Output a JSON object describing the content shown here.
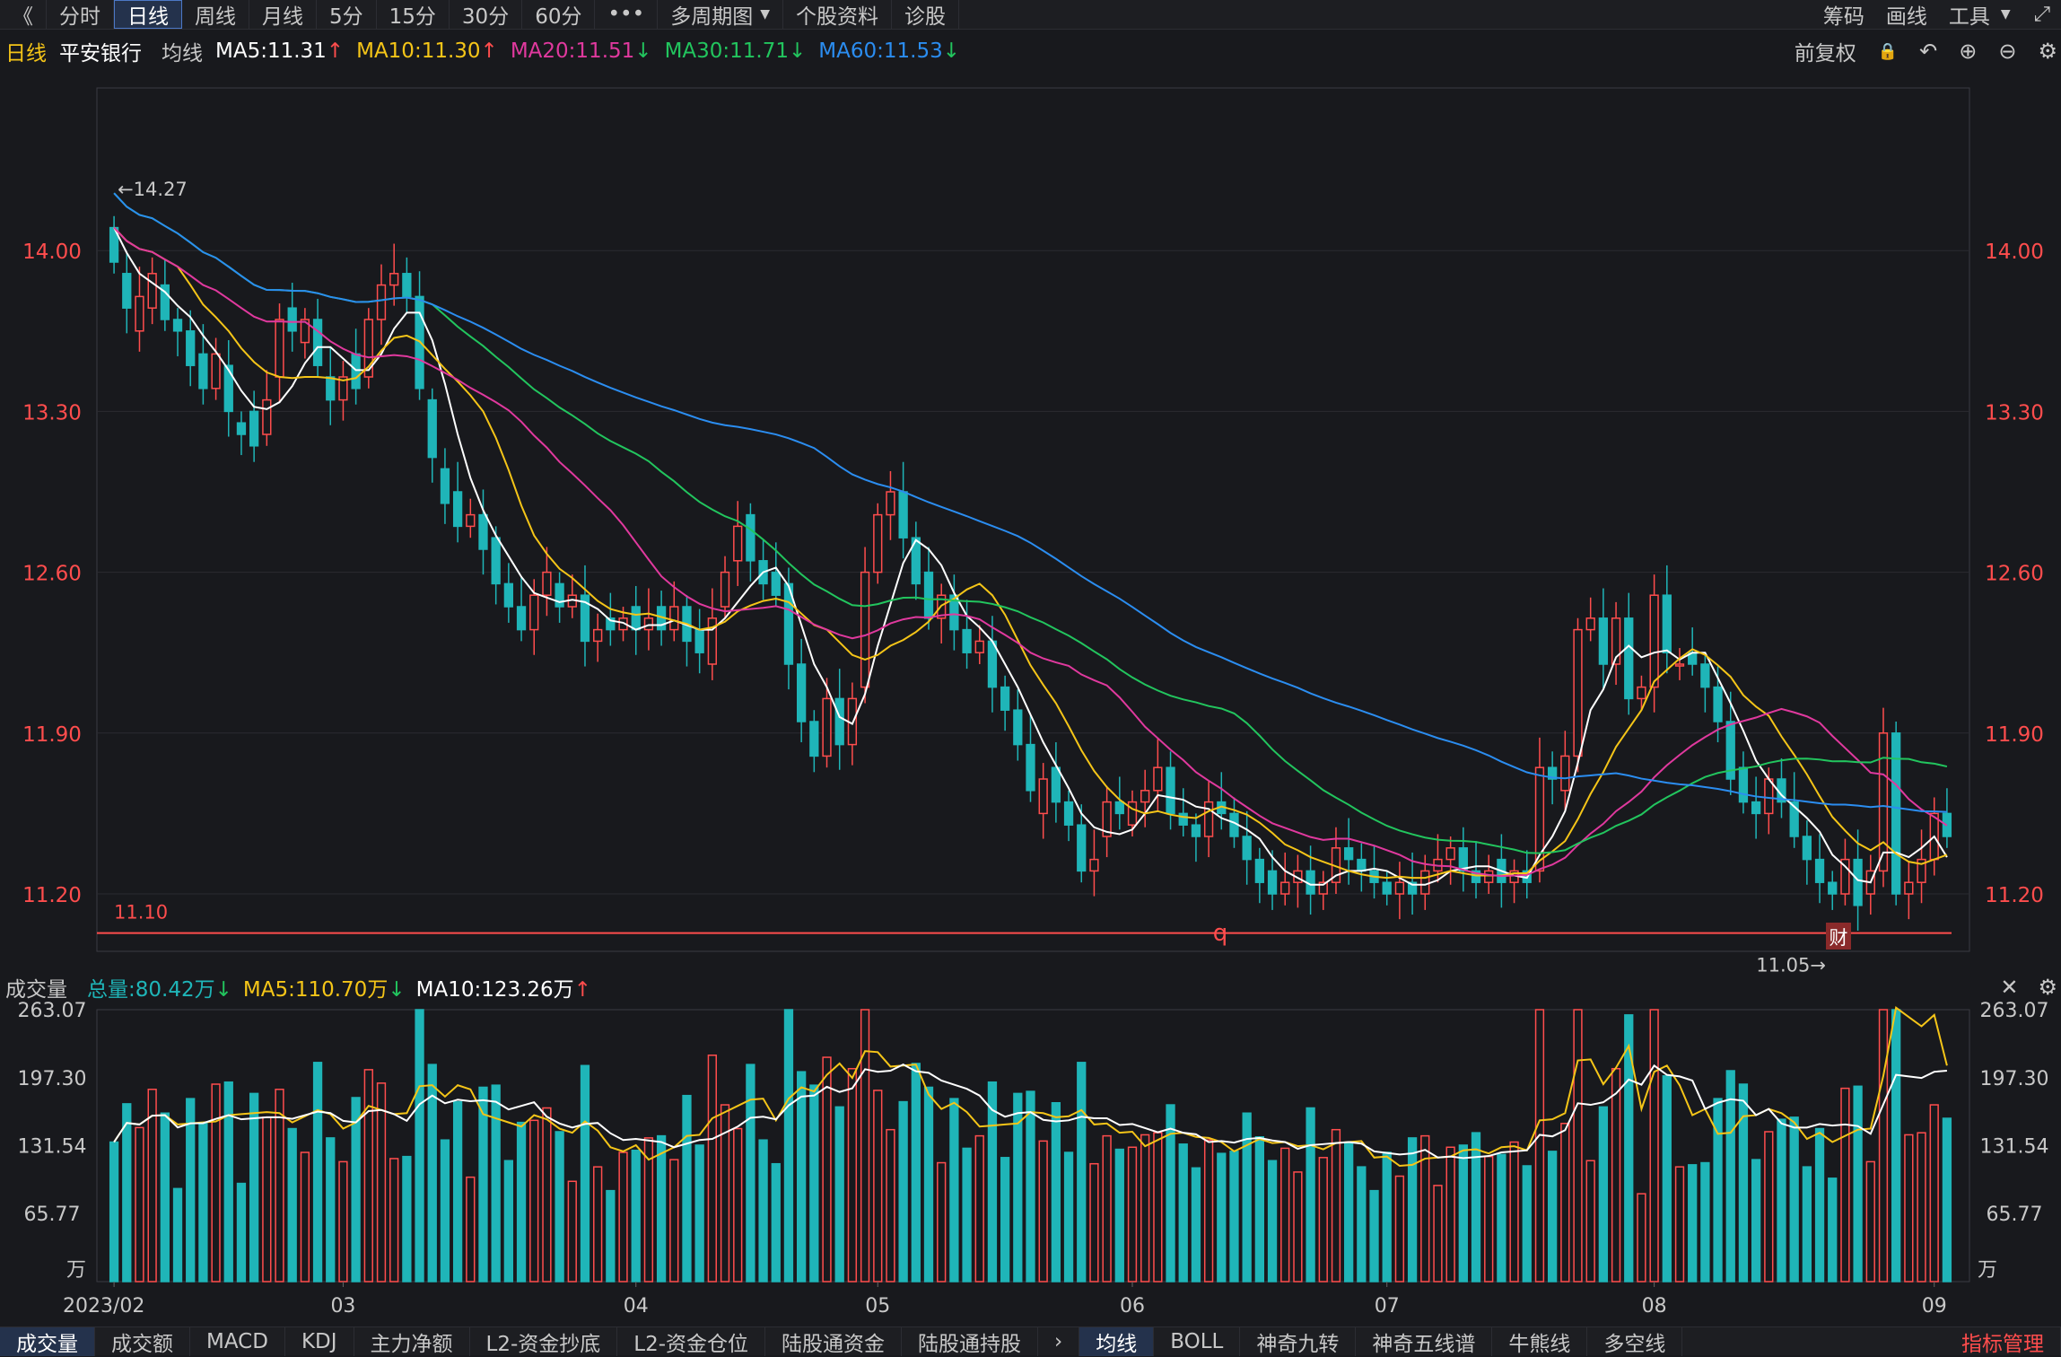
{
  "toolbar": {
    "back": "《",
    "tabs": [
      "分时",
      "日线",
      "周线",
      "月线",
      "5分",
      "15分",
      "30分",
      "60分"
    ],
    "active": 1,
    "more": "•••",
    "multi": "多周期图",
    "multi_arrow": "▼",
    "info": "个股资料",
    "diag": "诊股",
    "right": [
      "筹码",
      "画线",
      "工具"
    ],
    "tools_arrow": "▼",
    "expand_icon": "⤢"
  },
  "info": {
    "period": "日线",
    "name": "平安银行",
    "ma_label": "均线",
    "ma5": "MA5:11.31",
    "ma5_dir": "↑",
    "ma10": "MA10:11.30",
    "ma10_dir": "↑",
    "ma20": "MA20:11.51",
    "ma20_dir": "↓",
    "ma30": "MA30:11.71",
    "ma30_dir": "↓",
    "ma60": "MA60:11.53",
    "ma60_dir": "↓",
    "adj": "前复权",
    "icons": [
      "🔒",
      "↶",
      "⊕",
      "⊖",
      "⚙"
    ]
  },
  "colors": {
    "up": "#ff4d4d",
    "down": "#1fb5b8",
    "ma5": "#ffffff",
    "ma10": "#f5c518",
    "ma20": "#e0399e",
    "ma30": "#22c55e",
    "ma60": "#2b8df0"
  },
  "price_axis": {
    "labels": [
      "14.00",
      "13.30",
      "12.60",
      "11.90",
      "11.20"
    ],
    "values": [
      14.0,
      13.3,
      12.6,
      11.9,
      11.2
    ],
    "min": 10.95,
    "max": 14.7
  },
  "annotations": {
    "high": "←14.27",
    "high_value": 14.27,
    "low": "11.05→",
    "low_value": 11.05,
    "line_label": "11.10",
    "line_value": 11.1,
    "marker_q": "q",
    "marker_cai": "财"
  },
  "volume": {
    "title": "成交量",
    "total": "总量:80.42万",
    "total_dir": "↓",
    "ma5": "MA5:110.70万",
    "ma5_dir": "↓",
    "ma10": "MA10:123.26万",
    "ma10_dir": "↑",
    "axis_labels": [
      "263.07",
      "197.30",
      "131.54",
      "65.77"
    ],
    "axis_values": [
      263.07,
      197.3,
      131.54,
      65.77
    ],
    "unit": "万",
    "close_icon": "✕",
    "settings_icon": "⚙"
  },
  "date_axis": [
    {
      "label": "2023/02",
      "i": 0
    },
    {
      "label": "03",
      "i": 18
    },
    {
      "label": "04",
      "i": 41
    },
    {
      "label": "05",
      "i": 60
    },
    {
      "label": "06",
      "i": 80
    },
    {
      "label": "07",
      "i": 100
    },
    {
      "label": "08",
      "i": 121
    },
    {
      "label": "09",
      "i": 143
    }
  ],
  "bottom_tabs_left": [
    "成交量",
    "成交额",
    "MACD",
    "KDJ",
    "主力净额",
    "L2-资金抄底",
    "L2-资金仓位",
    "陆股通资金",
    "陆股通持股"
  ],
  "bottom_tabs_right": [
    "均线",
    "BOLL",
    "神奇九转",
    "神奇五线谱",
    "牛熊线",
    "多空线"
  ],
  "bottom_arrow": "›",
  "bottom_right": "指标管理",
  "chart_data": {
    "type": "candlestick",
    "title": "平安银行 日线",
    "close": [
      13.95,
      13.75,
      13.8,
      13.9,
      13.7,
      13.65,
      13.5,
      13.4,
      13.55,
      13.3,
      13.2,
      13.15,
      13.35,
      13.7,
      13.65,
      13.7,
      13.5,
      13.35,
      13.45,
      13.4,
      13.7,
      13.85,
      13.9,
      13.8,
      13.4,
      13.1,
      12.9,
      12.8,
      12.85,
      12.7,
      12.55,
      12.45,
      12.35,
      12.5,
      12.6,
      12.45,
      12.5,
      12.3,
      12.35,
      12.35,
      12.4,
      12.35,
      12.4,
      12.35,
      12.45,
      12.3,
      12.25,
      12.4,
      12.6,
      12.8,
      12.65,
      12.55,
      12.5,
      12.2,
      11.95,
      11.8,
      12.05,
      11.85,
      12.05,
      12.6,
      12.85,
      12.95,
      12.75,
      12.55,
      12.4,
      12.5,
      12.35,
      12.25,
      12.3,
      12.1,
      12.0,
      11.85,
      11.65,
      11.7,
      11.6,
      11.5,
      11.3,
      11.35,
      11.6,
      11.55,
      11.6,
      11.65,
      11.75,
      11.55,
      11.5,
      11.45,
      11.6,
      11.55,
      11.45,
      11.35,
      11.25,
      11.2,
      11.25,
      11.3,
      11.2,
      11.25,
      11.4,
      11.35,
      11.3,
      11.25,
      11.2,
      11.25,
      11.2,
      11.3,
      11.35,
      11.4,
      11.3,
      11.25,
      11.3,
      11.25,
      11.3,
      11.25,
      11.75,
      11.7,
      11.8,
      12.35,
      12.4,
      12.2,
      12.4,
      12.05,
      12.1,
      12.5,
      12.25,
      12.2,
      12.2,
      12.1,
      11.95,
      11.7,
      11.6,
      11.55,
      11.7,
      11.6,
      11.45,
      11.35,
      11.25,
      11.2,
      11.35,
      11.15,
      11.3,
      11.9,
      11.2,
      11.25,
      11.35,
      11.55,
      11.45
    ],
    "open": [
      14.1,
      13.9,
      13.65,
      13.75,
      13.85,
      13.7,
      13.65,
      13.55,
      13.4,
      13.5,
      13.25,
      13.3,
      13.2,
      13.45,
      13.75,
      13.6,
      13.7,
      13.45,
      13.35,
      13.55,
      13.45,
      13.7,
      13.85,
      13.9,
      13.8,
      13.35,
      13.05,
      12.95,
      12.8,
      12.85,
      12.75,
      12.55,
      12.45,
      12.35,
      12.5,
      12.55,
      12.45,
      12.5,
      12.3,
      12.4,
      12.35,
      12.45,
      12.35,
      12.45,
      12.35,
      12.45,
      12.35,
      12.2,
      12.45,
      12.65,
      12.85,
      12.65,
      12.6,
      12.55,
      12.2,
      11.95,
      11.8,
      12.05,
      11.85,
      12.1,
      12.6,
      12.85,
      12.95,
      12.75,
      12.6,
      12.4,
      12.5,
      12.35,
      12.25,
      12.3,
      12.1,
      12.0,
      11.85,
      11.55,
      11.75,
      11.6,
      11.5,
      11.3,
      11.45,
      11.6,
      11.5,
      11.6,
      11.65,
      11.75,
      11.55,
      11.5,
      11.45,
      11.6,
      11.55,
      11.45,
      11.35,
      11.3,
      11.2,
      11.25,
      11.3,
      11.2,
      11.25,
      11.4,
      11.35,
      11.3,
      11.25,
      11.2,
      11.25,
      11.2,
      11.3,
      11.35,
      11.4,
      11.3,
      11.25,
      11.35,
      11.25,
      11.3,
      11.3,
      11.75,
      11.65,
      11.8,
      12.35,
      12.4,
      12.2,
      12.4,
      12.05,
      12.1,
      12.5,
      12.2,
      12.25,
      12.2,
      12.1,
      11.95,
      11.75,
      11.6,
      11.55,
      11.7,
      11.6,
      11.45,
      11.35,
      11.25,
      11.2,
      11.35,
      11.2,
      11.3,
      11.9,
      11.2,
      11.25,
      11.35,
      11.55
    ]
  }
}
